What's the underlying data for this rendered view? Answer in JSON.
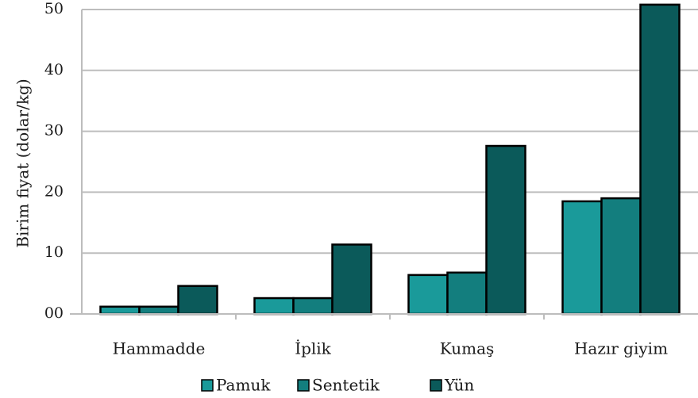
{
  "chart_data": {
    "type": "bar",
    "title": "",
    "xlabel": "",
    "ylabel": "Birim fiyat (dolar/kg)",
    "categories": [
      "Hammadde",
      "İplik",
      "Kumaş",
      "Hazır giyim"
    ],
    "series": [
      {
        "name": "Pamuk",
        "values": [
          1.2,
          2.6,
          6.4,
          18.5
        ],
        "color": "#1a9a9a"
      },
      {
        "name": "Sentetik",
        "values": [
          1.2,
          2.6,
          6.8,
          19.0
        ],
        "color": "#137e7e"
      },
      {
        "name": "Yün",
        "values": [
          4.6,
          11.4,
          27.6,
          50.8
        ],
        "color": "#0b5a5a"
      }
    ],
    "ylim": [
      0,
      50
    ],
    "yticks": [
      0,
      10,
      20,
      30,
      40,
      50
    ],
    "ytick_labels": [
      "00",
      "10",
      "20",
      "30",
      "40",
      "50"
    ],
    "grid": true,
    "legend": "bottom"
  }
}
